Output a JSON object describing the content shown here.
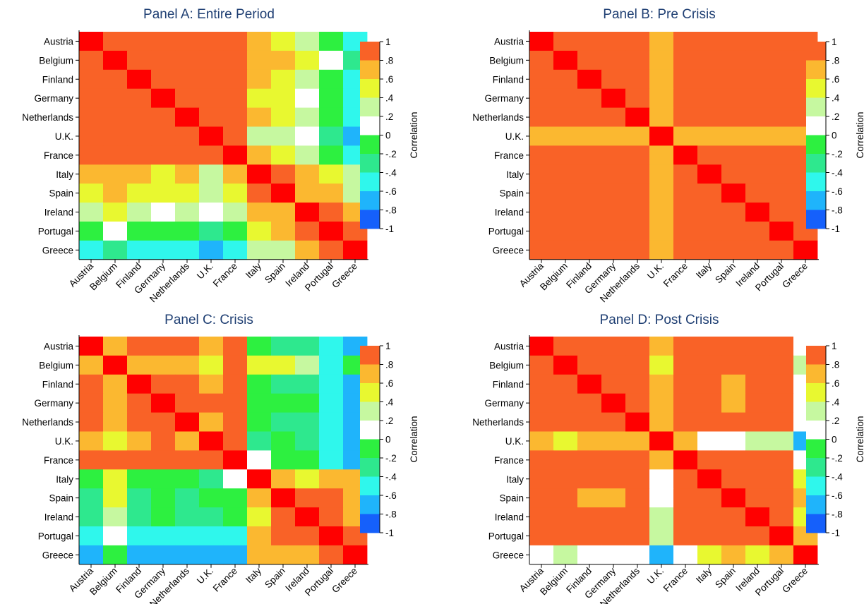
{
  "chart_data": [
    {
      "type": "heatmap",
      "title": "Panel A: Entire Period",
      "countries": [
        "Austria",
        "Belgium",
        "Finland",
        "Germany",
        "Netherlands",
        "U.K.",
        "France",
        "Italy",
        "Spain",
        "Ireland",
        "Portugal",
        "Greece"
      ],
      "colorbar": {
        "label": "Correlation",
        "ticks": [
          "1",
          ".8",
          ".6",
          ".4",
          ".2",
          "0",
          "-.2",
          "-.4",
          "-.6",
          "-.8",
          "-1"
        ],
        "range": [
          -1,
          1
        ]
      },
      "values": [
        [
          1,
          0.9,
          0.9,
          0.9,
          0.9,
          0.9,
          0.9,
          0.7,
          0.5,
          0.3,
          -0.1,
          -0.5
        ],
        [
          0.9,
          1,
          0.9,
          0.9,
          0.9,
          0.9,
          0.9,
          0.7,
          0.7,
          0.5,
          0.1,
          -0.3
        ],
        [
          0.9,
          0.9,
          1,
          0.9,
          0.9,
          0.9,
          0.9,
          0.7,
          0.5,
          0.3,
          -0.1,
          -0.5
        ],
        [
          0.9,
          0.9,
          0.9,
          1,
          0.9,
          0.9,
          0.9,
          0.5,
          0.5,
          0.1,
          -0.1,
          -0.5
        ],
        [
          0.9,
          0.9,
          0.9,
          0.9,
          1,
          0.9,
          0.9,
          0.7,
          0.5,
          0.3,
          -0.1,
          -0.5
        ],
        [
          0.9,
          0.9,
          0.9,
          0.9,
          0.9,
          1,
          0.9,
          0.3,
          0.3,
          0.1,
          -0.3,
          -0.7
        ],
        [
          0.9,
          0.9,
          0.9,
          0.9,
          0.9,
          0.9,
          1,
          0.7,
          0.5,
          0.3,
          -0.1,
          -0.5
        ],
        [
          0.7,
          0.7,
          0.7,
          0.5,
          0.7,
          0.3,
          0.7,
          1,
          0.9,
          0.7,
          0.5,
          0.3
        ],
        [
          0.5,
          0.7,
          0.5,
          0.5,
          0.5,
          0.3,
          0.5,
          0.9,
          1,
          0.7,
          0.7,
          0.3
        ],
        [
          0.3,
          0.5,
          0.3,
          0.1,
          0.3,
          0.1,
          0.3,
          0.7,
          0.7,
          1,
          0.9,
          0.7
        ],
        [
          -0.1,
          0.1,
          -0.1,
          -0.1,
          -0.1,
          -0.3,
          -0.1,
          0.5,
          0.7,
          0.9,
          1,
          0.9
        ],
        [
          -0.5,
          -0.3,
          -0.5,
          -0.5,
          -0.5,
          -0.7,
          -0.5,
          0.3,
          0.3,
          0.7,
          0.9,
          1
        ]
      ]
    },
    {
      "type": "heatmap",
      "title": "Panel B: Pre Crisis",
      "countries": [
        "Austria",
        "Belgium",
        "Finland",
        "Germany",
        "Netherlands",
        "U.K.",
        "France",
        "Italy",
        "Spain",
        "Ireland",
        "Portugal",
        "Greece"
      ],
      "colorbar": {
        "label": "Correlation",
        "ticks": [
          "1",
          ".8",
          ".6",
          ".4",
          ".2",
          "0",
          "-.2",
          "-.4",
          "-.6",
          "-.8",
          "-1"
        ],
        "range": [
          -1,
          1
        ]
      },
      "values": [
        [
          1,
          0.9,
          0.9,
          0.9,
          0.9,
          0.7,
          0.9,
          0.9,
          0.9,
          0.9,
          0.9,
          0.9
        ],
        [
          0.9,
          1,
          0.9,
          0.9,
          0.9,
          0.7,
          0.9,
          0.9,
          0.9,
          0.9,
          0.9,
          0.9
        ],
        [
          0.9,
          0.9,
          1,
          0.9,
          0.9,
          0.7,
          0.9,
          0.9,
          0.9,
          0.9,
          0.9,
          0.9
        ],
        [
          0.9,
          0.9,
          0.9,
          1,
          0.9,
          0.7,
          0.9,
          0.9,
          0.9,
          0.9,
          0.9,
          0.9
        ],
        [
          0.9,
          0.9,
          0.9,
          0.9,
          1,
          0.7,
          0.9,
          0.9,
          0.9,
          0.9,
          0.9,
          0.9
        ],
        [
          0.7,
          0.7,
          0.7,
          0.7,
          0.7,
          1,
          0.7,
          0.7,
          0.7,
          0.7,
          0.7,
          0.7
        ],
        [
          0.9,
          0.9,
          0.9,
          0.9,
          0.9,
          0.7,
          1,
          0.9,
          0.9,
          0.9,
          0.9,
          0.9
        ],
        [
          0.9,
          0.9,
          0.9,
          0.9,
          0.9,
          0.7,
          0.9,
          1,
          0.9,
          0.9,
          0.9,
          0.9
        ],
        [
          0.9,
          0.9,
          0.9,
          0.9,
          0.9,
          0.7,
          0.9,
          0.9,
          1,
          0.9,
          0.9,
          0.9
        ],
        [
          0.9,
          0.9,
          0.9,
          0.9,
          0.9,
          0.7,
          0.9,
          0.9,
          0.9,
          1,
          0.9,
          0.9
        ],
        [
          0.9,
          0.9,
          0.9,
          0.9,
          0.9,
          0.7,
          0.9,
          0.9,
          0.9,
          0.9,
          1,
          0.9
        ],
        [
          0.9,
          0.9,
          0.9,
          0.9,
          0.9,
          0.7,
          0.9,
          0.9,
          0.9,
          0.9,
          0.9,
          1
        ]
      ]
    },
    {
      "type": "heatmap",
      "title": "Panel C: Crisis",
      "countries": [
        "Austria",
        "Belgium",
        "Finland",
        "Germany",
        "Netherlands",
        "U.K.",
        "France",
        "Italy",
        "Spain",
        "Ireland",
        "Portugal",
        "Greece"
      ],
      "colorbar": {
        "label": "Correlation",
        "ticks": [
          "1",
          ".8",
          ".6",
          ".4",
          ".2",
          "0",
          "-.2",
          "-.4",
          "-.6",
          "-.8",
          "-1"
        ],
        "range": [
          -1,
          1
        ]
      },
      "values": [
        [
          1,
          0.7,
          0.9,
          0.9,
          0.9,
          0.7,
          0.9,
          -0.1,
          -0.3,
          -0.3,
          -0.5,
          -0.7
        ],
        [
          0.7,
          1,
          0.7,
          0.7,
          0.7,
          0.5,
          0.9,
          0.5,
          0.5,
          0.3,
          -0.5,
          -0.1
        ],
        [
          0.9,
          0.7,
          1,
          0.9,
          0.9,
          0.7,
          0.9,
          -0.1,
          -0.3,
          -0.3,
          -0.5,
          -0.7
        ],
        [
          0.9,
          0.7,
          0.9,
          1,
          0.9,
          0.9,
          0.9,
          -0.1,
          -0.1,
          -0.1,
          -0.5,
          -0.7
        ],
        [
          0.9,
          0.7,
          0.9,
          0.9,
          1,
          0.7,
          0.9,
          -0.1,
          -0.3,
          -0.3,
          -0.5,
          -0.7
        ],
        [
          0.7,
          0.5,
          0.7,
          0.9,
          0.7,
          1,
          0.9,
          -0.3,
          -0.1,
          -0.3,
          -0.5,
          -0.7
        ],
        [
          0.9,
          0.9,
          0.9,
          0.9,
          0.9,
          0.9,
          1,
          0.1,
          -0.1,
          -0.1,
          -0.5,
          -0.7
        ],
        [
          -0.1,
          0.5,
          -0.1,
          -0.1,
          -0.1,
          -0.3,
          0.1,
          1,
          0.7,
          0.5,
          0.7,
          0.7
        ],
        [
          -0.3,
          0.5,
          -0.3,
          -0.1,
          -0.3,
          -0.1,
          -0.1,
          0.7,
          1,
          0.9,
          0.9,
          0.7
        ],
        [
          -0.3,
          0.3,
          -0.3,
          -0.1,
          -0.3,
          -0.3,
          -0.1,
          0.5,
          0.9,
          1,
          0.9,
          0.7
        ],
        [
          -0.5,
          0.1,
          -0.5,
          -0.5,
          -0.5,
          -0.5,
          -0.5,
          0.7,
          0.9,
          0.9,
          1,
          0.9
        ],
        [
          -0.7,
          -0.1,
          -0.7,
          -0.7,
          -0.7,
          -0.7,
          -0.7,
          0.7,
          0.7,
          0.7,
          0.9,
          1
        ]
      ]
    },
    {
      "type": "heatmap",
      "title": "Panel D: Post Crisis",
      "countries": [
        "Austria",
        "Belgium",
        "Finland",
        "Germany",
        "Netherlands",
        "U.K.",
        "France",
        "Italy",
        "Spain",
        "Ireland",
        "Portugal",
        "Greece"
      ],
      "colorbar": {
        "label": "Correlation",
        "ticks": [
          "1",
          ".8",
          ".6",
          ".4",
          ".2",
          "0",
          "-.2",
          "-.4",
          "-.6",
          "-.8",
          "-1"
        ],
        "range": [
          -1,
          1
        ]
      },
      "values": [
        [
          1,
          0.9,
          0.9,
          0.9,
          0.9,
          0.7,
          0.9,
          0.9,
          0.9,
          0.9,
          0.9,
          0.1
        ],
        [
          0.9,
          1,
          0.9,
          0.9,
          0.9,
          0.5,
          0.9,
          0.9,
          0.9,
          0.9,
          0.9,
          0.3
        ],
        [
          0.9,
          0.9,
          1,
          0.9,
          0.9,
          0.7,
          0.9,
          0.9,
          0.7,
          0.9,
          0.9,
          0.1
        ],
        [
          0.9,
          0.9,
          0.9,
          1,
          0.9,
          0.7,
          0.9,
          0.9,
          0.7,
          0.9,
          0.9,
          0.1
        ],
        [
          0.9,
          0.9,
          0.9,
          0.9,
          1,
          0.7,
          0.9,
          0.9,
          0.9,
          0.9,
          0.9,
          0.1
        ],
        [
          0.7,
          0.5,
          0.7,
          0.7,
          0.7,
          1,
          0.7,
          0.1,
          0.1,
          0.3,
          0.3,
          -0.7
        ],
        [
          0.9,
          0.9,
          0.9,
          0.9,
          0.9,
          0.7,
          1,
          0.9,
          0.9,
          0.9,
          0.9,
          0.1
        ],
        [
          0.9,
          0.9,
          0.9,
          0.9,
          0.9,
          0.1,
          0.9,
          1,
          0.9,
          0.9,
          0.9,
          0.5
        ],
        [
          0.9,
          0.9,
          0.7,
          0.7,
          0.9,
          0.1,
          0.9,
          0.9,
          1,
          0.9,
          0.9,
          0.7
        ],
        [
          0.9,
          0.9,
          0.9,
          0.9,
          0.9,
          0.3,
          0.9,
          0.9,
          0.9,
          1,
          0.9,
          0.5
        ],
        [
          0.9,
          0.9,
          0.9,
          0.9,
          0.9,
          0.3,
          0.9,
          0.9,
          0.9,
          0.9,
          1,
          0.7
        ],
        [
          0.1,
          0.3,
          0.1,
          0.1,
          0.1,
          -0.7,
          0.1,
          0.5,
          0.7,
          0.5,
          0.7,
          1
        ]
      ]
    }
  ]
}
